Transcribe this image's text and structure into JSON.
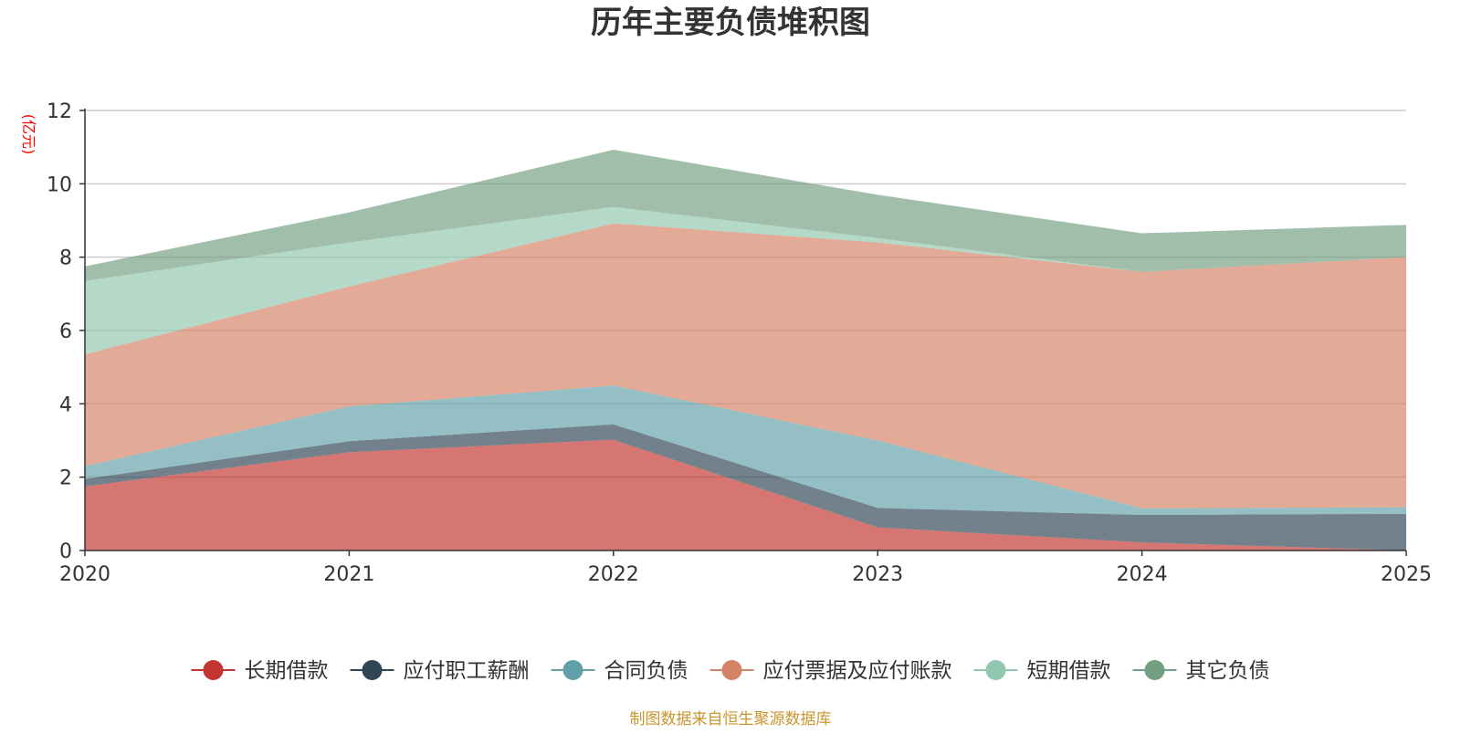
{
  "chart_data": {
    "type": "area",
    "stacked": true,
    "title": "历年主要负债堆积图",
    "ylabel": "(亿元)",
    "xlabel": "",
    "x": [
      "2020",
      "2021",
      "2022",
      "2023",
      "2024",
      "2025"
    ],
    "ylim": [
      0,
      12
    ],
    "yticks": [
      0,
      2,
      4,
      6,
      8,
      10,
      12
    ],
    "grid": true,
    "legend_position": "bottom",
    "series": [
      {
        "name": "长期借款",
        "color": "#c23531",
        "values": [
          1.75,
          2.68,
          3.02,
          0.63,
          0.22,
          0.0
        ]
      },
      {
        "name": "应付职工薪酬",
        "color": "#2f4554",
        "values": [
          0.2,
          0.3,
          0.42,
          0.53,
          0.75,
          1.0
        ]
      },
      {
        "name": "合同负债",
        "color": "#61a0a8",
        "values": [
          0.35,
          0.95,
          1.06,
          1.84,
          0.18,
          0.18
        ]
      },
      {
        "name": "应付票据及应付账款",
        "color": "#d48265",
        "values": [
          3.05,
          3.27,
          4.42,
          5.4,
          6.45,
          6.82
        ]
      },
      {
        "name": "短期借款",
        "color": "#91c7ae",
        "values": [
          2.0,
          1.2,
          0.45,
          0.12,
          0.0,
          0.0
        ]
      },
      {
        "name": "其它负债",
        "color": "#749f83",
        "values": [
          0.4,
          0.82,
          1.56,
          1.18,
          1.05,
          0.88
        ]
      }
    ],
    "source": "制图数据来自恒生聚源数据库"
  }
}
